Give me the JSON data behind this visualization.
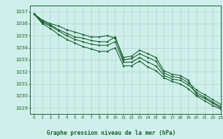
{
  "title": "Graphe pression niveau de la mer (hPa)",
  "background_color": "#cff0ea",
  "plot_bg_color": "#cff0ea",
  "grid_color": "#aad4cc",
  "line_color": "#1a5c30",
  "xlim": [
    -0.5,
    23
  ],
  "ylim": [
    1028.5,
    1037.5
  ],
  "yticks": [
    1029,
    1030,
    1031,
    1032,
    1033,
    1034,
    1035,
    1036,
    1037
  ],
  "xticks": [
    0,
    1,
    2,
    3,
    4,
    5,
    6,
    7,
    8,
    9,
    10,
    11,
    12,
    13,
    14,
    15,
    16,
    17,
    18,
    19,
    20,
    21,
    22,
    23
  ],
  "series": [
    [
      1036.8,
      1036.3,
      1036.0,
      1035.8,
      1035.5,
      1035.3,
      1035.1,
      1034.9,
      1034.9,
      1035.0,
      1034.8,
      1033.2,
      1033.3,
      1033.8,
      1033.5,
      1033.2,
      1032.1,
      1031.8,
      1031.7,
      1031.3,
      1030.1,
      1029.8,
      1029.4,
      1029.0
    ],
    [
      1036.8,
      1036.2,
      1035.9,
      1035.5,
      1035.2,
      1034.9,
      1034.8,
      1034.6,
      1034.5,
      1034.5,
      1034.9,
      1033.0,
      1033.1,
      1033.5,
      1033.2,
      1032.9,
      1031.9,
      1031.6,
      1031.5,
      1031.1,
      1030.5,
      1030.1,
      1029.7,
      1029.3
    ],
    [
      1036.8,
      1036.1,
      1035.8,
      1035.4,
      1035.0,
      1034.7,
      1034.5,
      1034.3,
      1034.2,
      1034.2,
      1034.5,
      1032.8,
      1032.8,
      1033.2,
      1032.8,
      1032.5,
      1031.7,
      1031.4,
      1031.3,
      1030.9,
      1030.3,
      1029.9,
      1029.5,
      1029.1
    ],
    [
      1036.8,
      1036.0,
      1035.6,
      1035.1,
      1034.7,
      1034.4,
      1034.1,
      1033.9,
      1033.7,
      1033.7,
      1034.0,
      1032.5,
      1032.5,
      1032.9,
      1032.4,
      1032.1,
      1031.5,
      1031.2,
      1031.0,
      1030.6,
      1030.0,
      1029.6,
      1029.2,
      1028.9
    ]
  ]
}
